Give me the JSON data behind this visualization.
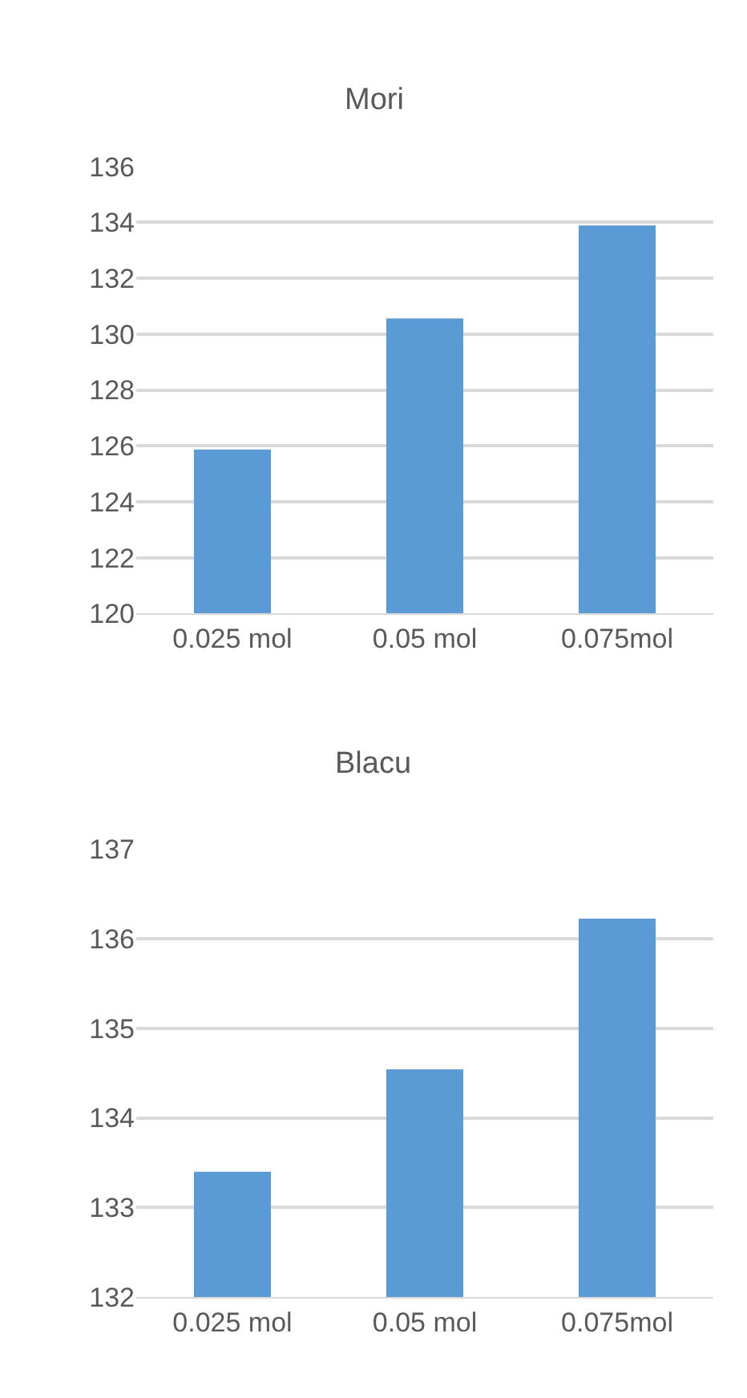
{
  "chart_data": [
    {
      "type": "bar",
      "title": "Mori",
      "categories": [
        "0.025 mol",
        "0.05 mol",
        "0.075mol"
      ],
      "values": [
        125.87,
        130.56,
        133.89
      ],
      "color": "#5b9bd5",
      "ylim": [
        120,
        136
      ],
      "yticks": [
        120,
        122,
        124,
        126,
        128,
        130,
        132,
        134,
        136
      ],
      "grid": "y"
    },
    {
      "type": "bar",
      "title": "Blacu",
      "categories": [
        "0.025 mol",
        "0.05 mol",
        "0.075mol"
      ],
      "values": [
        133.4,
        134.54,
        136.22
      ],
      "color": "#5b9bd5",
      "ylim": [
        132,
        137
      ],
      "yticks": [
        132,
        133,
        134,
        135,
        136,
        137
      ],
      "grid": "y"
    }
  ]
}
